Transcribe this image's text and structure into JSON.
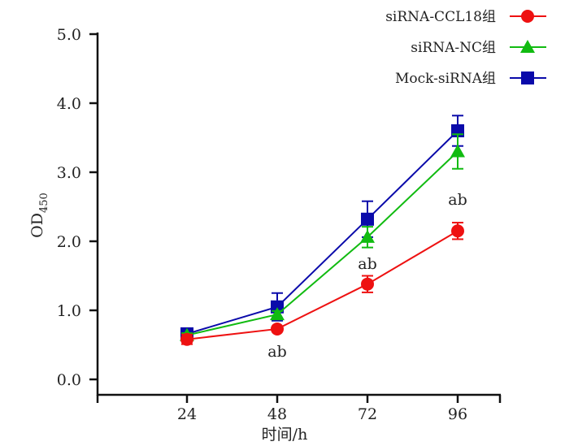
{
  "chart_data": {
    "type": "line",
    "title": "",
    "xlabel": "时间/h",
    "ylabel": "OD",
    "ylabel_sub": "450",
    "x": [
      24,
      48,
      72,
      96
    ],
    "x_ticks": [
      "24",
      "48",
      "72",
      "96"
    ],
    "y_ticks": [
      "0.0",
      "1.0",
      "2.0",
      "3.0",
      "4.0",
      "5.0"
    ],
    "ylim": [
      0,
      5
    ],
    "grid": false,
    "legend_position": "top-right",
    "series": [
      {
        "name": "siRNA-CCL18组",
        "color": "#ee1111",
        "marker": "circle",
        "values": [
          0.58,
          0.73,
          1.38,
          2.15
        ],
        "errors": [
          0.07,
          0.03,
          0.12,
          0.12
        ]
      },
      {
        "name": "siRNA-NC组",
        "color": "#11bb11",
        "marker": "triangle",
        "values": [
          0.64,
          0.94,
          2.06,
          3.3
        ],
        "errors": [
          0.03,
          0.05,
          0.15,
          0.25
        ]
      },
      {
        "name": "Mock-siRNA组",
        "color": "#0a0aaa",
        "marker": "square",
        "values": [
          0.66,
          1.05,
          2.32,
          3.6
        ],
        "errors": [
          0.05,
          0.2,
          0.26,
          0.22
        ]
      }
    ],
    "annotations": [
      {
        "x": 48,
        "y": 0.4,
        "text": "ab"
      },
      {
        "x": 72,
        "y": 1.67,
        "text": "ab"
      },
      {
        "x": 96,
        "y": 2.6,
        "text": "ab"
      }
    ]
  }
}
